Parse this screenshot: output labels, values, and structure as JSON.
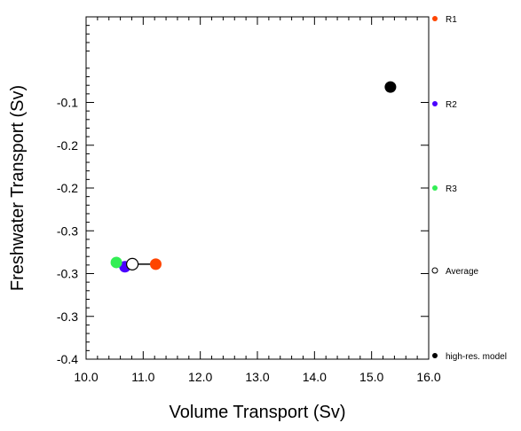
{
  "chart_data": {
    "type": "scatter",
    "title": "",
    "xlabel": "Volume Transport (Sv)",
    "ylabel": "Freshwater Transport (Sv)",
    "xlim": [
      10.0,
      16.0
    ],
    "ylim": [
      -0.4,
      0.0
    ],
    "x_ticks": [
      {
        "value": 10.0,
        "label": "10.0"
      },
      {
        "value": 11.0,
        "label": "11.0"
      },
      {
        "value": 12.0,
        "label": "12.0"
      },
      {
        "value": 13.0,
        "label": "13.0"
      },
      {
        "value": 14.0,
        "label": "14.0"
      },
      {
        "value": 15.0,
        "label": "15.0"
      },
      {
        "value": 16.0,
        "label": "16.0"
      }
    ],
    "y_ticks": [
      {
        "value": -0.1,
        "label": "-0.1"
      },
      {
        "value": -0.15,
        "label": "-0.2"
      },
      {
        "value": -0.2,
        "label": "-0.2"
      },
      {
        "value": -0.25,
        "label": "-0.3"
      },
      {
        "value": -0.3,
        "label": "-0.3"
      },
      {
        "value": -0.35,
        "label": "-0.3"
      },
      {
        "value": -0.4,
        "label": "-0.4"
      }
    ],
    "grid": false,
    "legend_position": "right",
    "series": [
      {
        "name": "R1",
        "color": "#ff4500",
        "filled": true,
        "x": 11.22,
        "y": -0.289
      },
      {
        "name": "R2",
        "color": "#4a00ff",
        "filled": true,
        "x": 10.68,
        "y": -0.292
      },
      {
        "name": "R3",
        "color": "#33ee55",
        "filled": true,
        "x": 10.53,
        "y": -0.287
      },
      {
        "name": "Average",
        "color": "#000000",
        "filled": false,
        "x": 10.81,
        "y": -0.289
      },
      {
        "name": "high-res. model",
        "color": "#000000",
        "filled": true,
        "x": 15.33,
        "y": -0.082
      }
    ],
    "connector": {
      "x": [
        10.81,
        11.22
      ],
      "y": [
        -0.289,
        -0.289
      ],
      "color": "#000000"
    }
  }
}
